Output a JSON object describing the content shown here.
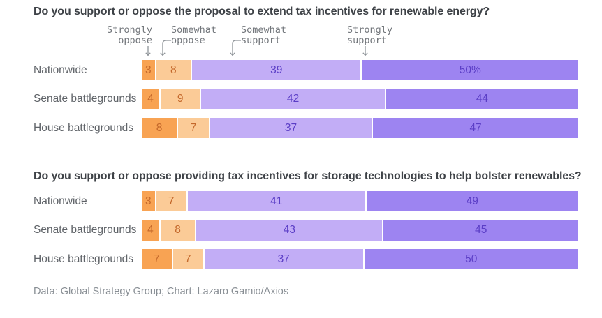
{
  "chart_data": [
    {
      "type": "bar",
      "stacked": true,
      "orientation": "horizontal",
      "title": "Do you support or oppose the proposal to extend tax incentives for renewable energy?",
      "categories": [
        "Nationwide",
        "Senate battlegrounds",
        "House battlegrounds"
      ],
      "series": [
        {
          "name": "Strongly oppose",
          "color": "#F8A353",
          "label_color": "#C4682B",
          "values": [
            3,
            4,
            8
          ]
        },
        {
          "name": "Somewhat oppose",
          "color": "#FBCB97",
          "label_color": "#C4682B",
          "values": [
            8,
            9,
            7
          ]
        },
        {
          "name": "Somewhat support",
          "color": "#C2ADF6",
          "label_color": "#5B3EC6",
          "values": [
            39,
            42,
            37
          ]
        },
        {
          "name": "Strongly support",
          "color": "#9D84F1",
          "label_color": "#5B3EC6",
          "values": [
            50,
            44,
            47
          ]
        }
      ],
      "value_labels": [
        [
          "3",
          "8",
          "39",
          "50%"
        ],
        [
          "4",
          "9",
          "42",
          "44"
        ],
        [
          "8",
          "7",
          "37",
          "47"
        ]
      ],
      "xlim": [
        0,
        100
      ],
      "grid": false,
      "legend_position": "top"
    },
    {
      "type": "bar",
      "stacked": true,
      "orientation": "horizontal",
      "title": "Do you support or oppose providing tax incentives for storage technologies to help bolster renewables?",
      "categories": [
        "Nationwide",
        "Senate battlegrounds",
        "House battlegrounds"
      ],
      "series": [
        {
          "name": "Strongly oppose",
          "color": "#F8A353",
          "label_color": "#C4682B",
          "values": [
            3,
            4,
            7
          ]
        },
        {
          "name": "Somewhat oppose",
          "color": "#FBCB97",
          "label_color": "#C4682B",
          "values": [
            7,
            8,
            7
          ]
        },
        {
          "name": "Somewhat support",
          "color": "#C2ADF6",
          "label_color": "#5B3EC6",
          "values": [
            41,
            43,
            37
          ]
        },
        {
          "name": "Strongly support",
          "color": "#9D84F1",
          "label_color": "#5B3EC6",
          "values": [
            49,
            45,
            50
          ]
        }
      ],
      "value_labels": [
        [
          "3",
          "7",
          "41",
          "49"
        ],
        [
          "4",
          "8",
          "43",
          "45"
        ],
        [
          "7",
          "7",
          "37",
          "50"
        ]
      ],
      "xlim": [
        0,
        100
      ],
      "grid": false,
      "legend_position": "none"
    }
  ],
  "legend": {
    "labels": [
      "Strongly\noppose",
      "Somewhat\noppose",
      "Somewhat\nsupport",
      "Strongly\nsupport"
    ]
  },
  "footer": {
    "data_label": "Data: ",
    "source": "Global Strategy Group",
    "separator": "; ",
    "credit": "Chart: Lazaro Gamio/Axios"
  },
  "colors": {
    "title_text": "#3E4247",
    "row_label_text": "#5F6368",
    "legend_text": "#73777C",
    "arrow_stroke": "#8F9499",
    "footer_text": "#888E94",
    "link_underline": "#85BBD6",
    "background": "#FFFFFF"
  }
}
